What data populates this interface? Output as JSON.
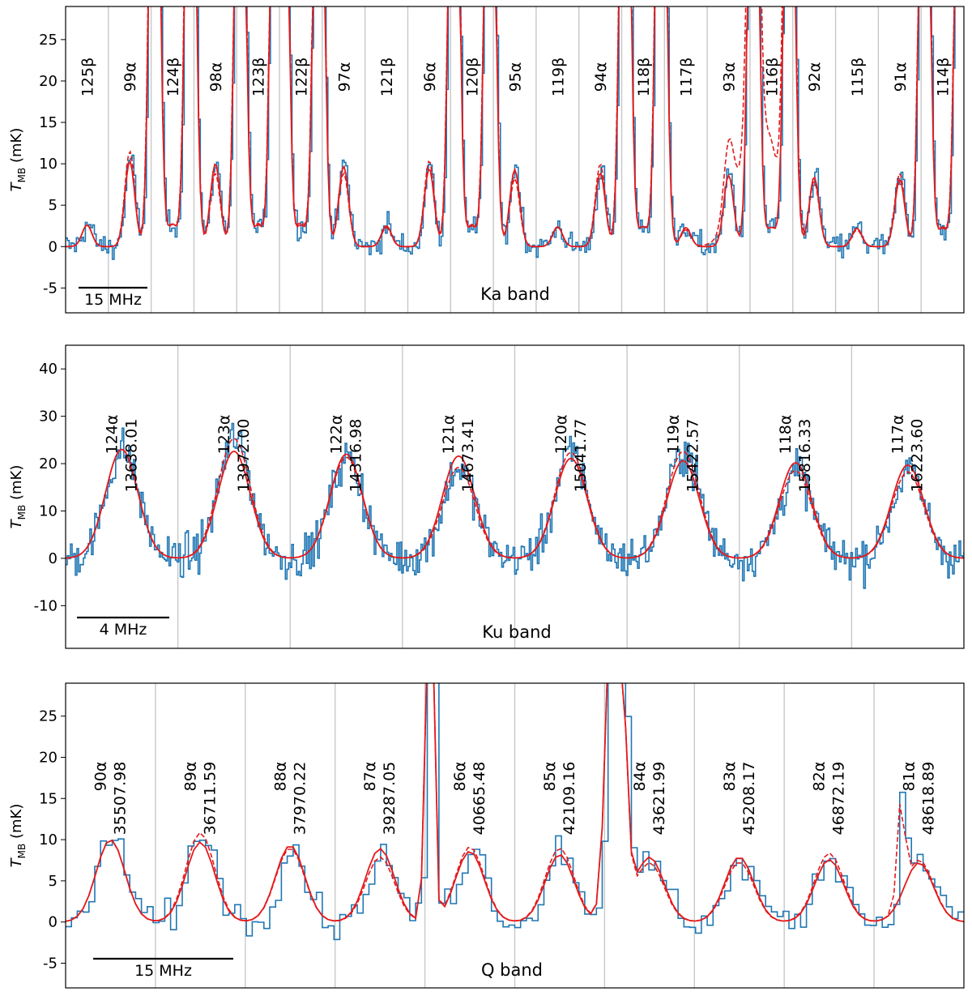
{
  "chart_data": [
    {
      "type": "line",
      "band": "Ka band",
      "ylabel": "T_MB (mK)",
      "ylabel_main": "T",
      "ylabel_sub": "MB",
      "ylabel_unit": " (mK)",
      "ylim": [
        -8,
        29
      ],
      "yticks": [
        -5,
        0,
        5,
        10,
        15,
        20,
        25
      ],
      "scale_bar": "15 MHz",
      "lines": [
        {
          "label": "125β",
          "amp": 2.6,
          "strong": 0
        },
        {
          "label": "99α",
          "amp": 10.3,
          "strong": 0
        },
        {
          "label": "124β",
          "amp": 2.7,
          "strong": 1
        },
        {
          "label": "98α",
          "amp": 10.0,
          "strong": 0
        },
        {
          "label": "123β",
          "amp": 2.6,
          "strong": 1
        },
        {
          "label": "122β",
          "amp": 2.6,
          "strong": 1
        },
        {
          "label": "97α",
          "amp": 9.7,
          "strong": 0
        },
        {
          "label": "121β",
          "amp": 2.5,
          "strong": 0
        },
        {
          "label": "96α",
          "amp": 9.4,
          "strong": 0
        },
        {
          "label": "120β",
          "amp": 2.5,
          "strong": 1
        },
        {
          "label": "95α",
          "amp": 9.3,
          "strong": 0
        },
        {
          "label": "119β",
          "amp": 2.4,
          "strong": 0
        },
        {
          "label": "94α",
          "amp": 8.9,
          "strong": 0
        },
        {
          "label": "118β",
          "amp": 2.4,
          "strong": 1
        },
        {
          "label": "117β",
          "amp": 2.3,
          "strong": 0
        },
        {
          "label": "93α",
          "amp": 8.6,
          "strong": 0
        },
        {
          "label": "116β",
          "amp": 2.3,
          "strong": 1
        },
        {
          "label": "92α",
          "amp": 8.4,
          "strong": 0
        },
        {
          "label": "115β",
          "amp": 2.2,
          "strong": 0
        },
        {
          "label": "91α",
          "amp": 8.1,
          "strong": 0
        },
        {
          "label": "114β",
          "amp": 2.2,
          "strong": 1
        }
      ]
    },
    {
      "type": "line",
      "band": "Ku band",
      "ylabel": "T_MB (mK)",
      "ylabel_main": "T",
      "ylabel_sub": "MB",
      "ylabel_unit": " (mK)",
      "ylim": [
        -19,
        45
      ],
      "yticks": [
        -10,
        0,
        10,
        20,
        30,
        40
      ],
      "scale_bar": "4 MHz",
      "lines": [
        {
          "label": "124α",
          "freq": "13638.01",
          "amp": 23.0
        },
        {
          "label": "123α",
          "freq": "13972.00",
          "amp": 22.6
        },
        {
          "label": "122α",
          "freq": "14316.98",
          "amp": 22.0
        },
        {
          "label": "121α",
          "freq": "14673.41",
          "amp": 21.6
        },
        {
          "label": "120α",
          "freq": "15041.77",
          "amp": 21.1
        },
        {
          "label": "119α",
          "freq": "15422.57",
          "amp": 20.6
        },
        {
          "label": "118α",
          "freq": "15816.33",
          "amp": 20.2
        },
        {
          "label": "117α",
          "freq": "16223.60",
          "amp": 19.7
        }
      ]
    },
    {
      "type": "line",
      "band": "Q band",
      "ylabel": "T_MB (mK)",
      "ylabel_main": "T",
      "ylabel_sub": "MB",
      "ylabel_unit": " (mK)",
      "ylim": [
        -8,
        29
      ],
      "yticks": [
        -5,
        0,
        5,
        10,
        15,
        20,
        25
      ],
      "scale_bar": "15 MHz",
      "lines": [
        {
          "label": "90α",
          "freq": "35507.98",
          "amp": 10.0
        },
        {
          "label": "89α",
          "freq": "36711.59",
          "amp": 9.7
        },
        {
          "label": "88α",
          "freq": "37970.22",
          "amp": 9.3
        },
        {
          "label": "87α",
          "freq": "39287.05",
          "amp": 8.9
        },
        {
          "label": "86α",
          "freq": "40665.48",
          "amp": 8.6
        },
        {
          "label": "85α",
          "freq": "42109.16",
          "amp": 8.2
        },
        {
          "label": "84α",
          "freq": "43621.99",
          "amp": 7.9
        },
        {
          "label": "83α",
          "freq": "45208.17",
          "amp": 7.9
        },
        {
          "label": "82α",
          "freq": "46872.19",
          "amp": 7.6
        },
        {
          "label": "81α",
          "freq": "48618.89",
          "amp": 7.2
        }
      ]
    }
  ]
}
